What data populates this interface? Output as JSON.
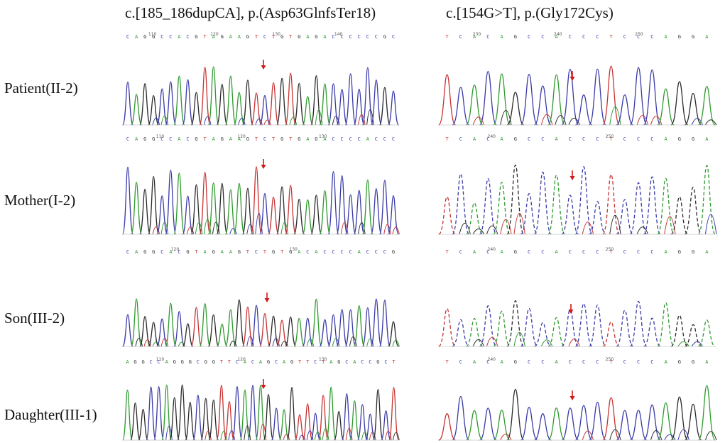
{
  "columns": [
    {
      "title": "c.[185_186dupCA], p.(Asp63GlnfsTer18)"
    },
    {
      "title": "c.[154G>T], p.(Gly172Cys)"
    }
  ],
  "rows": [
    {
      "label": "Patient(II-2)"
    },
    {
      "label": "Mother(I-2)"
    },
    {
      "label": "Son(III-2)"
    },
    {
      "label": "Daughter(III-1)"
    }
  ],
  "colors": {
    "base_A": "#2e9a2e",
    "base_C": "#3a3aa8",
    "base_G": "#2a2a2a",
    "base_T": "#c83232",
    "variant_arrow": "#d11a1a"
  },
  "panels": [
    {
      "row": 0,
      "col": 0,
      "sequence": "CAGGCCACGTAGAAGTCTGTGAGACCCCCCGC",
      "position_labels": [
        "110",
        "120",
        "130",
        "140"
      ]
    },
    {
      "row": 0,
      "col": 1,
      "sequence": "TCACAGCCACCCTCCCAGGA",
      "position_labels": [
        "230",
        "240",
        "250"
      ]
    },
    {
      "row": 1,
      "col": 0,
      "sequence": "CAGGCCACGTAGAAGTCTGTGAGACCCCACCC",
      "position_labels": [
        "110",
        "120",
        "130"
      ]
    },
    {
      "row": 1,
      "col": 1,
      "sequence": "TCACAGCCACCCTCCCAGGA",
      "position_labels": [
        "240",
        "250"
      ]
    },
    {
      "row": 2,
      "col": 0,
      "sequence": "CAGGCACGTAGAAGTCTGTGACACCCCACCCG",
      "position_labels": [
        "120",
        "130"
      ]
    },
    {
      "row": 2,
      "col": 1,
      "sequence": "TCACAGCCACCCTCCCAGGA",
      "position_labels": [
        "240",
        "250"
      ]
    },
    {
      "row": 3,
      "col": 0,
      "sequence": "AGGCCAGGGCGGTTCACAGCAGTTCTAGCACCGCT",
      "position_labels": [
        "110",
        "120",
        "130"
      ]
    },
    {
      "row": 3,
      "col": 1,
      "sequence": "TCACAGCCACCCTCCCAGGA",
      "position_labels": [
        "240",
        "250"
      ]
    }
  ]
}
